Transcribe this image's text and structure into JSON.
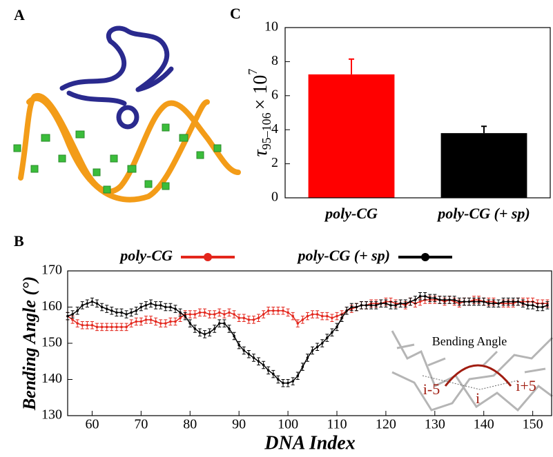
{
  "panel_a": "A",
  "chart_data": [
    {
      "type": "bar",
      "panel": "C",
      "categories": [
        "poly-CG",
        "poly-CG (+ sp)"
      ],
      "values": [
        7.25,
        3.8
      ],
      "errors": [
        0.9,
        0.4
      ],
      "colors": [
        "#ff0000",
        "#000000"
      ],
      "y_label": {
        "symbol": "τ",
        "subscript": "95–106",
        "times": "× 10",
        "exponent": "7"
      },
      "ylim": [
        0,
        10
      ],
      "yticks": [
        0,
        2,
        4,
        6,
        8,
        10
      ],
      "grid": false
    },
    {
      "type": "line",
      "panel": "B",
      "x_label": "DNA Index",
      "y_label": "Bending Angle (°)",
      "xlim": [
        55,
        154
      ],
      "xticks": [
        60,
        70,
        80,
        90,
        100,
        110,
        120,
        130,
        140,
        150
      ],
      "ylim": [
        130,
        170
      ],
      "yticks": [
        130,
        140,
        150,
        160,
        170
      ],
      "grid": false,
      "legend": "top",
      "x": [
        55,
        56,
        57,
        58,
        59,
        60,
        61,
        62,
        63,
        64,
        65,
        66,
        67,
        68,
        69,
        70,
        71,
        72,
        73,
        74,
        75,
        76,
        77,
        78,
        79,
        80,
        81,
        82,
        83,
        84,
        85,
        86,
        87,
        88,
        89,
        90,
        91,
        92,
        93,
        94,
        95,
        96,
        97,
        98,
        99,
        100,
        101,
        102,
        103,
        104,
        105,
        106,
        107,
        108,
        109,
        110,
        111,
        112,
        113,
        114,
        115,
        116,
        117,
        118,
        119,
        120,
        121,
        122,
        123,
        124,
        125,
        126,
        127,
        128,
        129,
        130,
        131,
        132,
        133,
        134,
        135,
        136,
        137,
        138,
        139,
        140,
        141,
        142,
        143,
        144,
        145,
        146,
        147,
        148,
        149,
        150,
        151,
        152,
        153
      ],
      "series": [
        {
          "name": "poly-CG",
          "color": "#e3261c",
          "error": 1,
          "values": [
            157.5,
            156.5,
            155.5,
            155,
            155,
            155,
            154.5,
            154.5,
            154.5,
            154.5,
            154.5,
            154.5,
            154.5,
            155.5,
            156,
            156,
            156.5,
            156.5,
            156,
            155.5,
            155.5,
            156,
            156,
            157,
            158,
            158,
            158,
            158.5,
            158.5,
            158,
            158,
            158.5,
            158,
            158.5,
            158,
            157,
            157,
            156.5,
            156.5,
            157,
            158,
            159,
            159,
            159,
            159,
            158.5,
            157.5,
            155.5,
            156.5,
            157.5,
            158,
            158,
            157.5,
            157.5,
            157,
            157.5,
            158,
            159,
            159.5,
            160,
            160.5,
            160.5,
            161,
            161,
            161,
            161.5,
            161.5,
            161,
            161,
            160.5,
            161.5,
            161,
            161.5,
            162,
            162,
            162,
            162,
            161.5,
            162,
            161.5,
            161,
            161.5,
            161.5,
            162,
            162,
            161.5,
            161.5,
            161.5,
            161,
            161,
            161,
            161,
            161.5,
            161.5,
            161.5,
            161.5,
            161,
            161,
            161
          ]
        },
        {
          "name": "poly-CG (+ sp)",
          "color": "#000000",
          "error": 1,
          "values": [
            157.5,
            158,
            159,
            160.5,
            161,
            161.5,
            161,
            160,
            159.5,
            159,
            158.5,
            158.5,
            158,
            158.5,
            159,
            160,
            160.5,
            161,
            160.5,
            160.5,
            160,
            160,
            159.5,
            158.5,
            157.5,
            155.5,
            154,
            153,
            152.5,
            153,
            154,
            155.5,
            155.5,
            154,
            152,
            149.5,
            148,
            147,
            146,
            145,
            144,
            142.5,
            141.5,
            140,
            139,
            139,
            139.5,
            141,
            143.5,
            146,
            148,
            149,
            150,
            151.5,
            153,
            154.5,
            157,
            159,
            160,
            160,
            160.5,
            160.5,
            160.5,
            160.5,
            161,
            161,
            160.5,
            160.5,
            161,
            161,
            161.5,
            162,
            163,
            163,
            162.5,
            162.5,
            162,
            162,
            162,
            162,
            161.5,
            161.5,
            161.5,
            161.5,
            161.5,
            161.5,
            161,
            161,
            161,
            161.5,
            161.5,
            161.5,
            161.5,
            161,
            160.5,
            160.5,
            160,
            160,
            160.5
          ]
        }
      ],
      "inset": {
        "title": "Bending Angle",
        "labels": [
          "i-5",
          "i",
          "i+5"
        ]
      }
    }
  ]
}
